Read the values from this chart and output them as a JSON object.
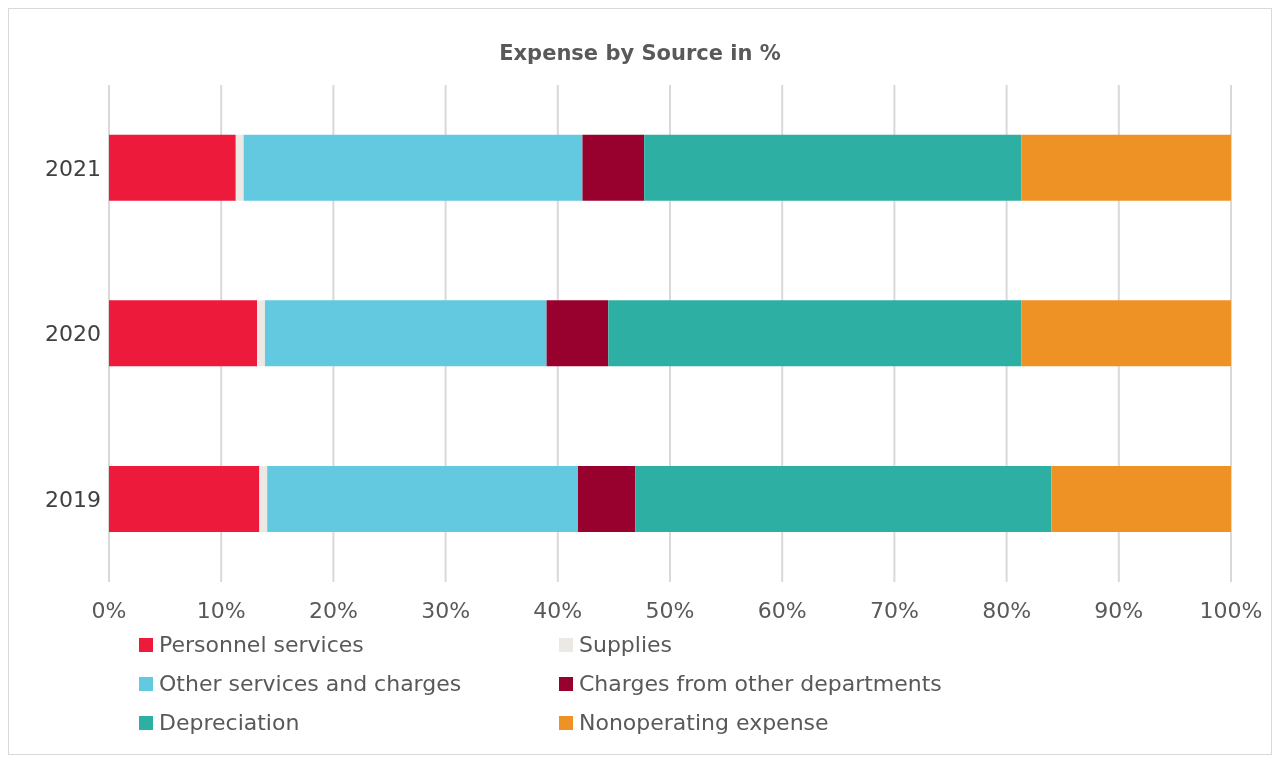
{
  "chart_data": {
    "type": "bar",
    "orientation": "horizontal",
    "stacked": true,
    "title": "Expense by Source in %",
    "categories": [
      "2021",
      "2020",
      "2019"
    ],
    "series": [
      {
        "name": "Personnel services",
        "color": "#ee1a3b",
        "values": [
          11.3,
          13.2,
          13.4
        ]
      },
      {
        "name": "Supplies",
        "color": "#ece8e4",
        "values": [
          0.7,
          0.7,
          0.7
        ]
      },
      {
        "name": "Other services and charges",
        "color": "#62c9e1",
        "values": [
          30.2,
          25.1,
          27.7
        ]
      },
      {
        "name": "Charges from other departments",
        "color": "#98002e",
        "values": [
          5.5,
          5.5,
          5.1
        ]
      },
      {
        "name": "Depreciation",
        "color": "#2eafa4",
        "values": [
          33.6,
          36.8,
          37.1
        ]
      },
      {
        "name": "Nonoperating expense",
        "color": "#ef9226",
        "values": [
          18.7,
          18.7,
          16.0
        ]
      }
    ],
    "xlim": [
      0,
      100
    ],
    "xticks": [
      {
        "value": 0,
        "label": "0%"
      },
      {
        "value": 10,
        "label": "10%"
      },
      {
        "value": 20,
        "label": "20%"
      },
      {
        "value": 30,
        "label": "30%"
      },
      {
        "value": 40,
        "label": "40%"
      },
      {
        "value": 50,
        "label": "50%"
      },
      {
        "value": 60,
        "label": "60%"
      },
      {
        "value": 70,
        "label": "70%"
      },
      {
        "value": 80,
        "label": "80%"
      },
      {
        "value": 90,
        "label": "90%"
      },
      {
        "value": 100,
        "label": "100%"
      }
    ],
    "grid": "x",
    "legend": "bottom"
  }
}
